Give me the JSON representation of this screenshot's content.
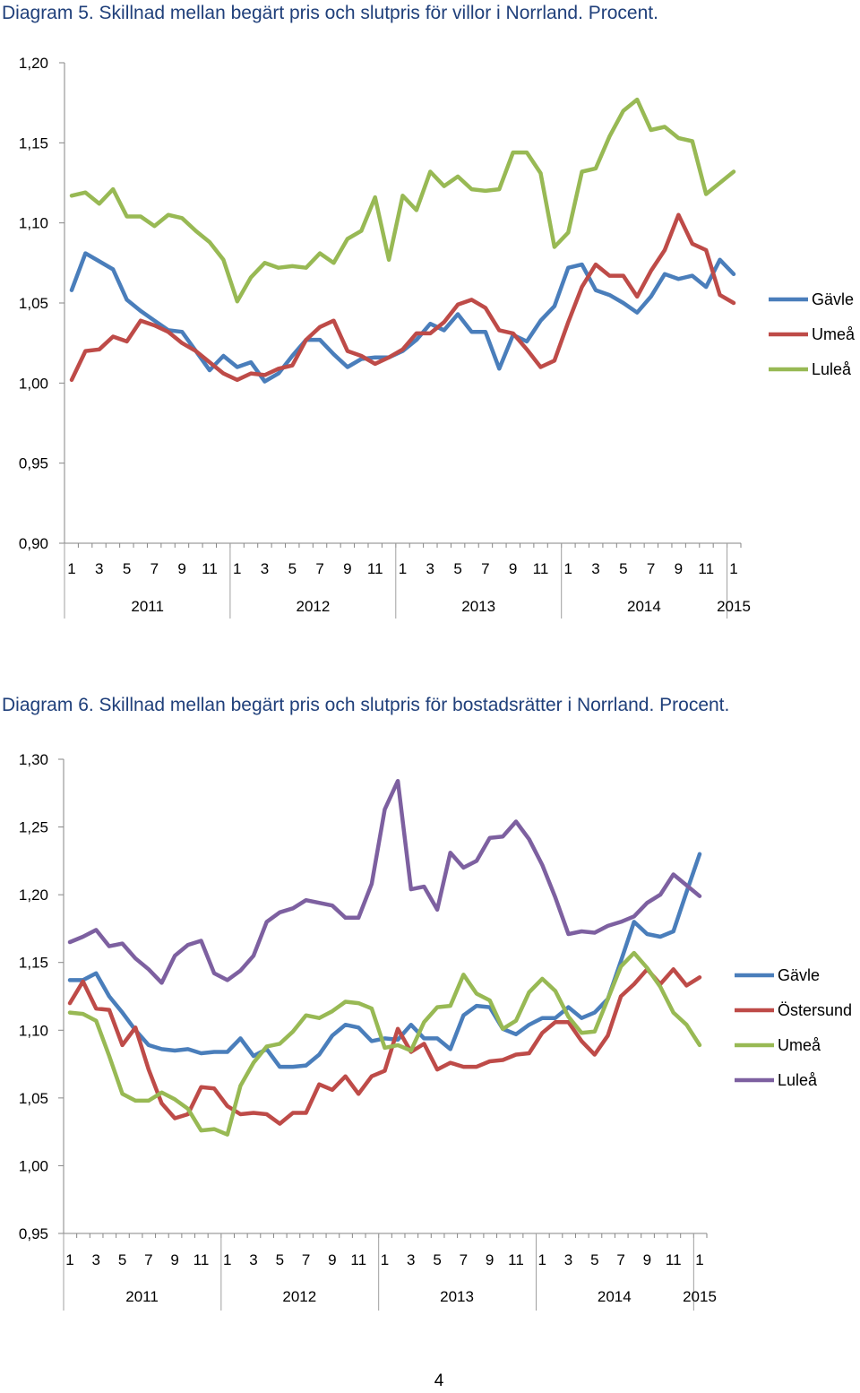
{
  "page_number": "4",
  "chart_data": [
    {
      "type": "line",
      "title": "Diagram 5. Skillnad mellan begärt pris och slutpris för villor i Norrland. Procent.",
      "xlabel": "",
      "ylabel": "",
      "ylim": [
        0.9,
        1.2
      ],
      "y_ticks": [
        "0,90",
        "0,95",
        "1,00",
        "1,05",
        "1,10",
        "1,15",
        "1,20"
      ],
      "x_tick_labels": [
        "1",
        "3",
        "5",
        "7",
        "9",
        "11",
        "1",
        "3",
        "5",
        "7",
        "9",
        "11",
        "1",
        "3",
        "5",
        "7",
        "9",
        "11",
        "1",
        "3",
        "5",
        "7",
        "9",
        "11",
        "1"
      ],
      "year_labels": [
        "2011",
        "2012",
        "2013",
        "2014",
        "2015"
      ],
      "grid": false,
      "legend": "right",
      "series": [
        {
          "name": "Gävle",
          "color": "#4a7ebb",
          "values": [
            1.058,
            1.081,
            1.076,
            1.071,
            1.052,
            1.045,
            1.039,
            1.033,
            1.032,
            1.02,
            1.008,
            1.017,
            1.01,
            1.013,
            1.001,
            1.006,
            1.017,
            1.027,
            1.027,
            1.018,
            1.01,
            1.015,
            1.016,
            1.016,
            1.02,
            1.027,
            1.037,
            1.033,
            1.043,
            1.032,
            1.032,
            1.009,
            1.03,
            1.026,
            1.039,
            1.048,
            1.072,
            1.074,
            1.058,
            1.055,
            1.05,
            1.044,
            1.054,
            1.068,
            1.065,
            1.067,
            1.06,
            1.077,
            1.068
          ]
        },
        {
          "name": "Umeå",
          "color": "#be4b48",
          "values": [
            1.002,
            1.02,
            1.021,
            1.029,
            1.026,
            1.039,
            1.036,
            1.032,
            1.025,
            1.02,
            1.013,
            1.006,
            1.002,
            1.006,
            1.005,
            1.009,
            1.011,
            1.027,
            1.035,
            1.039,
            1.02,
            1.017,
            1.012,
            1.016,
            1.021,
            1.031,
            1.031,
            1.038,
            1.049,
            1.052,
            1.047,
            1.033,
            1.031,
            1.021,
            1.01,
            1.014,
            1.038,
            1.06,
            1.074,
            1.067,
            1.067,
            1.054,
            1.07,
            1.083,
            1.105,
            1.087,
            1.083,
            1.055,
            1.05
          ]
        },
        {
          "name": "Luleå",
          "color": "#98b954",
          "values": [
            1.117,
            1.119,
            1.112,
            1.121,
            1.104,
            1.104,
            1.098,
            1.105,
            1.103,
            1.095,
            1.088,
            1.077,
            1.051,
            1.066,
            1.075,
            1.072,
            1.073,
            1.072,
            1.081,
            1.075,
            1.09,
            1.095,
            1.116,
            1.077,
            1.117,
            1.108,
            1.132,
            1.123,
            1.129,
            1.121,
            1.12,
            1.121,
            1.144,
            1.144,
            1.131,
            1.085,
            1.094,
            1.132,
            1.134,
            1.154,
            1.17,
            1.177,
            1.158,
            1.16,
            1.153,
            1.151,
            1.118,
            1.125,
            1.132
          ]
        }
      ]
    },
    {
      "type": "line",
      "title": "Diagram 6. Skillnad mellan begärt pris och slutpris för bostadsrätter i Norrland. Procent.",
      "xlabel": "",
      "ylabel": "",
      "ylim": [
        0.95,
        1.3
      ],
      "y_ticks": [
        "0,95",
        "1,00",
        "1,05",
        "1,10",
        "1,15",
        "1,20",
        "1,25",
        "1,30"
      ],
      "x_tick_labels": [
        "1",
        "3",
        "5",
        "7",
        "9",
        "11",
        "1",
        "3",
        "5",
        "7",
        "9",
        "11",
        "1",
        "3",
        "5",
        "7",
        "9",
        "11",
        "1",
        "3",
        "5",
        "7",
        "9",
        "11",
        "1"
      ],
      "year_labels": [
        "2011",
        "2012",
        "2013",
        "2014",
        "2015"
      ],
      "grid": false,
      "legend": "right",
      "series": [
        {
          "name": "Gävle",
          "color": "#4a7ebb",
          "values": [
            1.137,
            1.137,
            1.142,
            1.125,
            1.113,
            1.1,
            1.089,
            1.086,
            1.085,
            1.086,
            1.083,
            1.084,
            1.084,
            1.094,
            1.081,
            1.086,
            1.073,
            1.073,
            1.074,
            1.082,
            1.096,
            1.104,
            1.102,
            1.092,
            1.094,
            1.093,
            1.104,
            1.094,
            1.094,
            1.086,
            1.111,
            1.118,
            1.117,
            1.101,
            1.097,
            1.104,
            1.109,
            1.109,
            1.117,
            1.109,
            1.113,
            1.123,
            1.151,
            1.18,
            1.171,
            1.169,
            1.173,
            1.202,
            1.23
          ]
        },
        {
          "name": "Östersund",
          "color": "#be4b48",
          "values": [
            1.12,
            1.136,
            1.116,
            1.115,
            1.089,
            1.102,
            1.071,
            1.046,
            1.035,
            1.038,
            1.058,
            1.057,
            1.044,
            1.038,
            1.039,
            1.038,
            1.031,
            1.039,
            1.039,
            1.06,
            1.056,
            1.066,
            1.053,
            1.066,
            1.07,
            1.101,
            1.084,
            1.09,
            1.071,
            1.076,
            1.073,
            1.073,
            1.077,
            1.078,
            1.082,
            1.083,
            1.098,
            1.106,
            1.106,
            1.092,
            1.082,
            1.096,
            1.125,
            1.134,
            1.145,
            1.134,
            1.145,
            1.133,
            1.139
          ]
        },
        {
          "name": "Umeå",
          "color": "#98b954",
          "values": [
            1.113,
            1.112,
            1.107,
            1.081,
            1.053,
            1.048,
            1.048,
            1.054,
            1.049,
            1.042,
            1.026,
            1.027,
            1.023,
            1.059,
            1.076,
            1.088,
            1.09,
            1.099,
            1.111,
            1.109,
            1.114,
            1.121,
            1.12,
            1.116,
            1.087,
            1.089,
            1.085,
            1.106,
            1.117,
            1.118,
            1.141,
            1.127,
            1.122,
            1.101,
            1.107,
            1.128,
            1.138,
            1.129,
            1.11,
            1.098,
            1.099,
            1.123,
            1.147,
            1.157,
            1.146,
            1.132,
            1.113,
            1.104,
            1.089
          ]
        },
        {
          "name": "Luleå",
          "color": "#7d60a0",
          "values": [
            1.165,
            1.169,
            1.174,
            1.162,
            1.164,
            1.153,
            1.145,
            1.135,
            1.155,
            1.163,
            1.166,
            1.142,
            1.137,
            1.144,
            1.155,
            1.18,
            1.187,
            1.19,
            1.196,
            1.194,
            1.192,
            1.183,
            1.183,
            1.208,
            1.263,
            1.284,
            1.204,
            1.206,
            1.189,
            1.231,
            1.22,
            1.225,
            1.242,
            1.243,
            1.254,
            1.241,
            1.222,
            1.198,
            1.171,
            1.173,
            1.172,
            1.177,
            1.18,
            1.184,
            1.194,
            1.2,
            1.215,
            1.207,
            1.199
          ]
        }
      ]
    }
  ]
}
